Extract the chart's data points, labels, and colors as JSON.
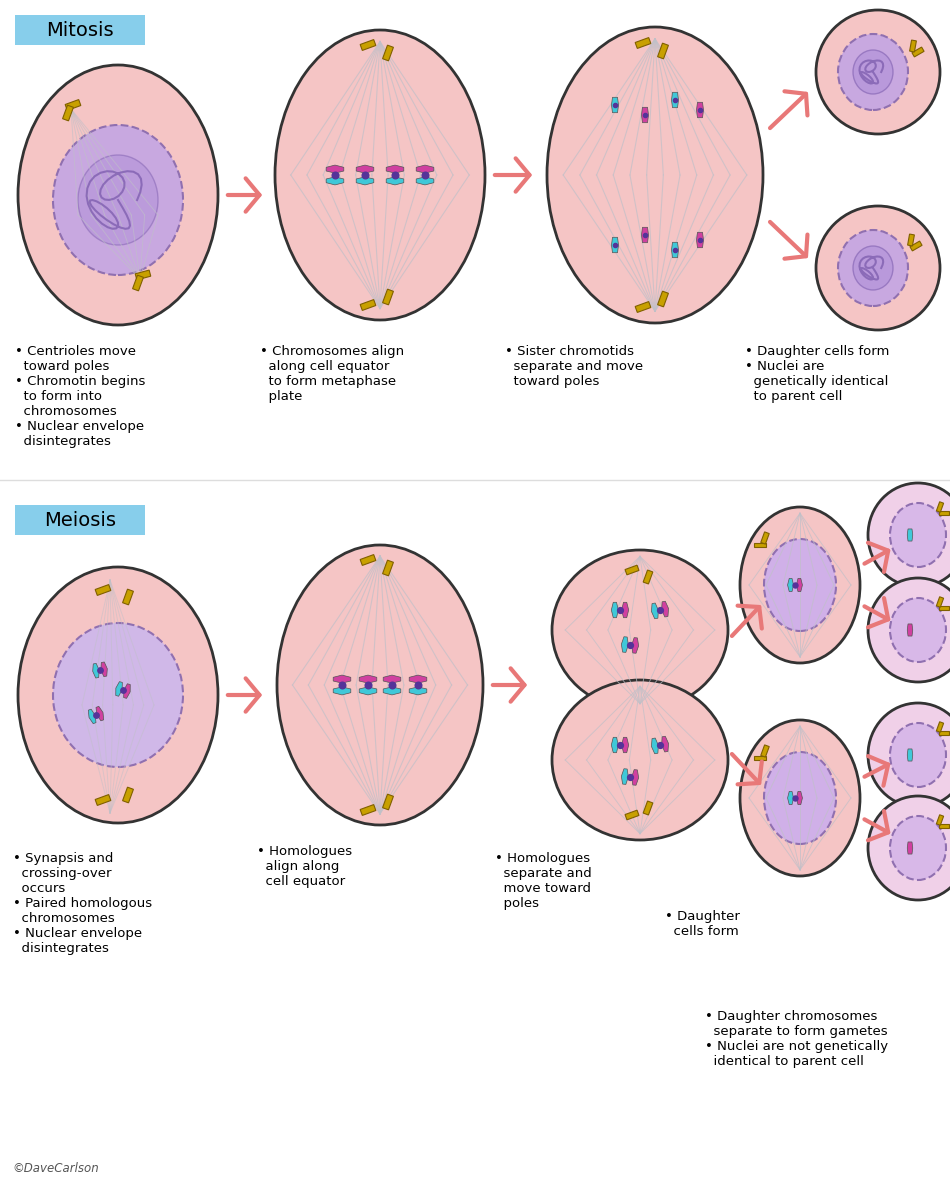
{
  "bg_color": "#ffffff",
  "cell_pink": "#f5c5c5",
  "nucleus_purple": "#c8a8e0",
  "chr_cyan": "#40c8d8",
  "chr_magenta": "#d040a0",
  "chr_yellow": "#d4a800",
  "spindle_color": "#c0c0c8",
  "arrow_color": "#e87878",
  "label_box_color": "#87ceeb",
  "title_mitosis": "Mitosis",
  "title_meiosis": "Meiosis",
  "mitosis_labels": [
    "• Centrioles move\n  toward poles\n• Chromotin begins\n  to form into\n  chromosomes\n• Nuclear envelope\n  disintegrates",
    "• Chromosomes align\n  along cell equator\n  to form metaphase\n  plate",
    "• Sister chromotids\n  separate and move\n  toward poles",
    "• Daughter cells form\n• Nuclei are\n  genetically identical\n  to parent cell"
  ],
  "meiosis_labels": [
    "• Synapsis and\n  crossing-over\n  occurs\n• Paired homologous\n  chromosomes\n• Nuclear envelope\n  disintegrates",
    "• Homologues\n  align along\n  cell equator",
    "• Homologues\n  separate and\n  move toward\n  poles",
    "• Daughter\n  cells form",
    "• Daughter chromosomes\n  separate to form gametes\n• Nuclei are not genetically\n  identical to parent cell"
  ],
  "copyright": "©DaveCarlson"
}
